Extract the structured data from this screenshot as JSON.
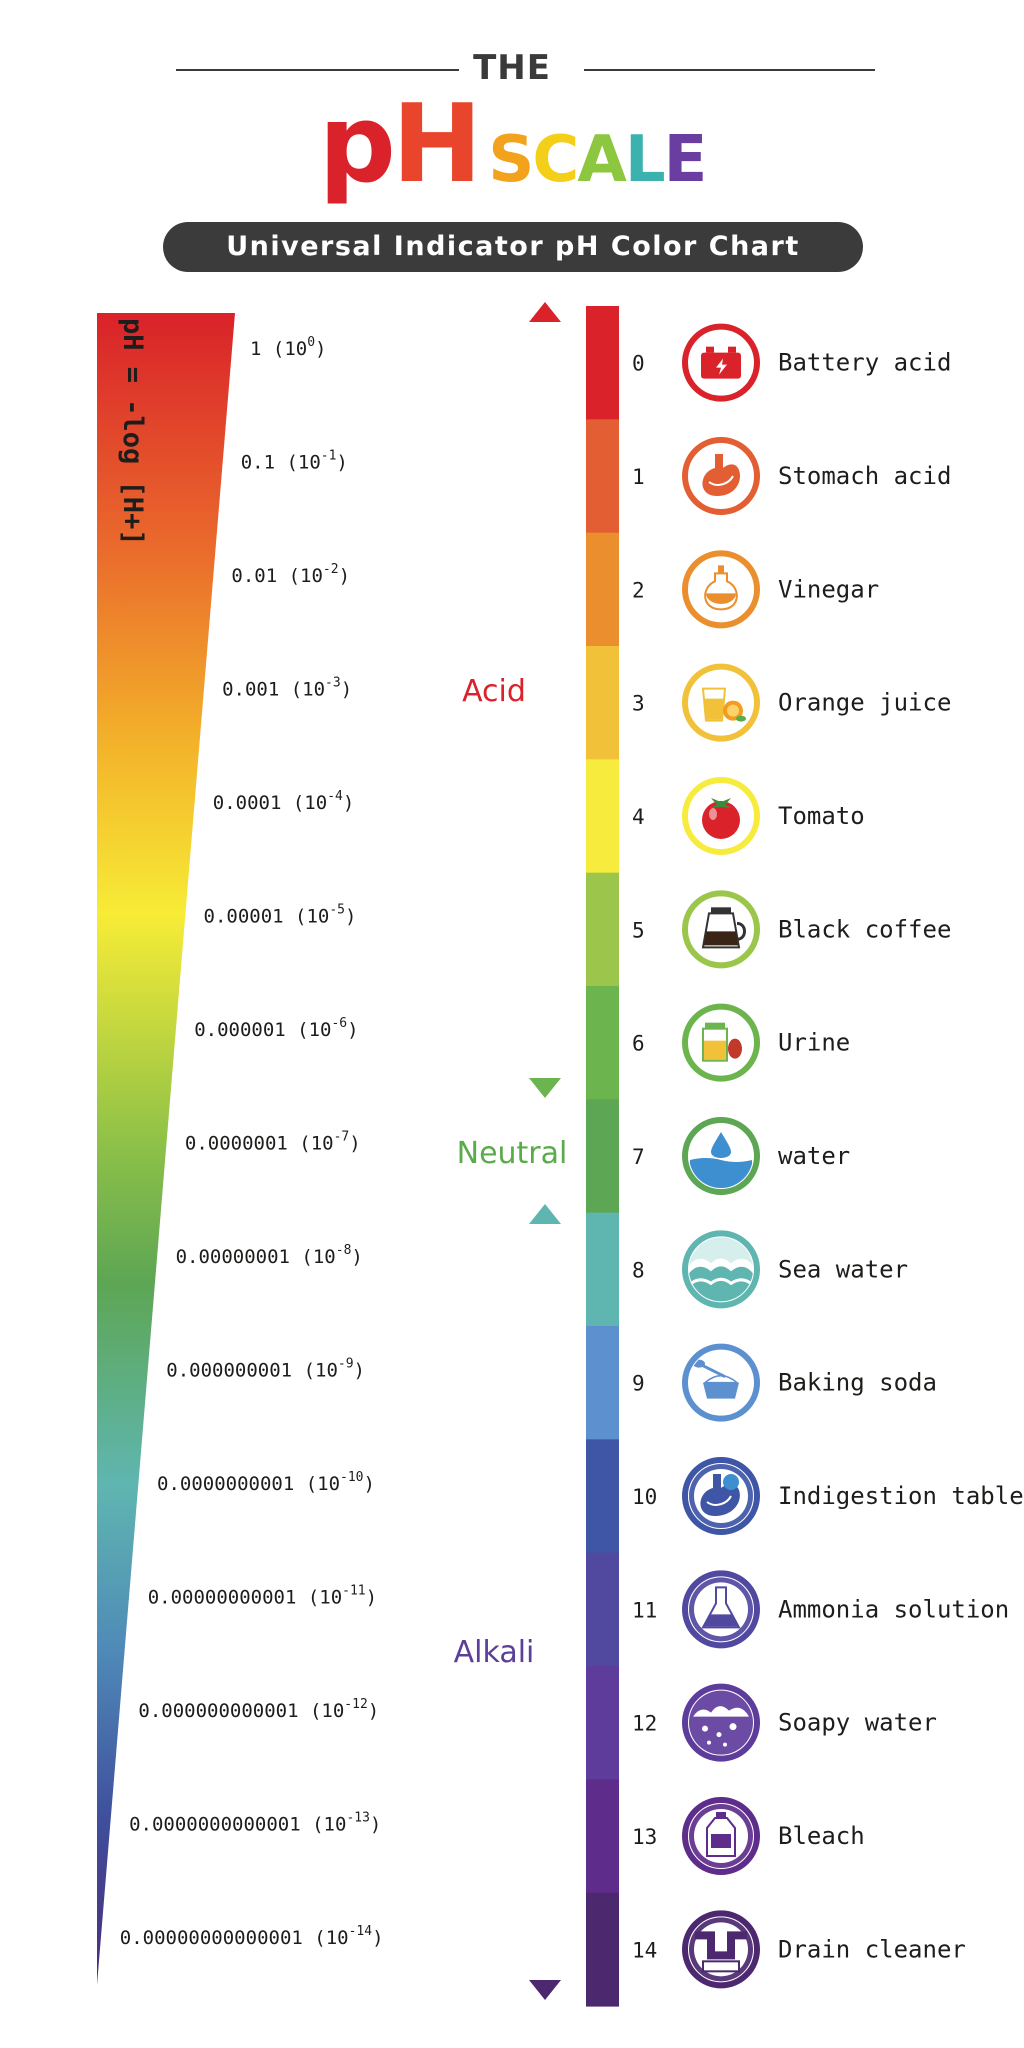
{
  "header": {
    "the": "THE",
    "ph_letters": [
      {
        "char": "p",
        "color": "#d9222a"
      },
      {
        "char": "H",
        "color": "#e8452c"
      }
    ],
    "scale_letters": [
      {
        "char": "S",
        "color": "#f3a21c"
      },
      {
        "char": "C",
        "color": "#f4cf1a"
      },
      {
        "char": "A",
        "color": "#8dc63f"
      },
      {
        "char": "L",
        "color": "#3bb2ae"
      },
      {
        "char": "E",
        "color": "#6a3ea1"
      }
    ],
    "subtitle": "Universal Indicator pH Color Chart"
  },
  "formula": "pH = -log [H+]",
  "regions": {
    "acid": {
      "label": "Acid",
      "color": "#d9222a"
    },
    "neutral": {
      "label": "Neutral",
      "color": "#5aab4a"
    },
    "alkali": {
      "label": "Alkali",
      "color": "#5b3f98"
    }
  },
  "concentrations": [
    {
      "base": "1",
      "exp": "0"
    },
    {
      "base": "0.1",
      "exp": "-1"
    },
    {
      "base": "0.01",
      "exp": "-2"
    },
    {
      "base": "0.001",
      "exp": "-3"
    },
    {
      "base": "0.0001",
      "exp": "-4"
    },
    {
      "base": "0.00001",
      "exp": "-5"
    },
    {
      "base": "0.000001",
      "exp": "-6"
    },
    {
      "base": "0.0000001",
      "exp": "-7"
    },
    {
      "base": "0.00000001",
      "exp": "-8"
    },
    {
      "base": "0.000000001",
      "exp": "-9"
    },
    {
      "base": "0.0000000001",
      "exp": "-10"
    },
    {
      "base": "0.00000000001",
      "exp": "-11"
    },
    {
      "base": "0.000000000001",
      "exp": "-12"
    },
    {
      "base": "0.0000000000001",
      "exp": "-13"
    },
    {
      "base": "0.00000000000001",
      "exp": "-14"
    }
  ],
  "ph_levels": [
    {
      "value": "0",
      "color": "#d9222a",
      "example": "Battery acid",
      "icon": "battery-icon"
    },
    {
      "value": "1",
      "color": "#e35f33",
      "example": "Stomach acid",
      "icon": "stomach-icon"
    },
    {
      "value": "2",
      "color": "#ea8e2e",
      "example": "Vinegar",
      "icon": "vinegar-bottle-icon"
    },
    {
      "value": "3",
      "color": "#f2c13a",
      "example": "Orange juice",
      "icon": "orange-juice-icon"
    },
    {
      "value": "4",
      "color": "#f7eb3d",
      "example": "Tomato",
      "icon": "tomato-icon"
    },
    {
      "value": "5",
      "color": "#9bc64b",
      "example": "Black coffee",
      "icon": "coffee-pot-icon"
    },
    {
      "value": "6",
      "color": "#6cb54e",
      "example": "Urine",
      "icon": "urine-sample-icon"
    },
    {
      "value": "7",
      "color": "#5da654",
      "example": "water",
      "icon": "water-drop-icon"
    },
    {
      "value": "8",
      "color": "#5fb6b0",
      "example": "Sea water",
      "icon": "sea-wave-icon"
    },
    {
      "value": "9",
      "color": "#5d90cf",
      "example": "Baking soda",
      "icon": "baking-soda-icon"
    },
    {
      "value": "10",
      "color": "#3f56a6",
      "example": "Indigestion tablet",
      "icon": "indigestion-tablet-icon"
    },
    {
      "value": "11",
      "color": "#5148a0",
      "example": "Ammonia solution",
      "icon": "flask-icon"
    },
    {
      "value": "12",
      "color": "#5e3c9c",
      "example": "Soapy water",
      "icon": "soap-bubbles-icon"
    },
    {
      "value": "13",
      "color": "#5e2d8b",
      "example": "Bleach",
      "icon": "bleach-bottle-icon"
    },
    {
      "value": "14",
      "color": "#4c286f",
      "example": "Drain cleaner",
      "icon": "drain-pipe-icon"
    }
  ]
}
